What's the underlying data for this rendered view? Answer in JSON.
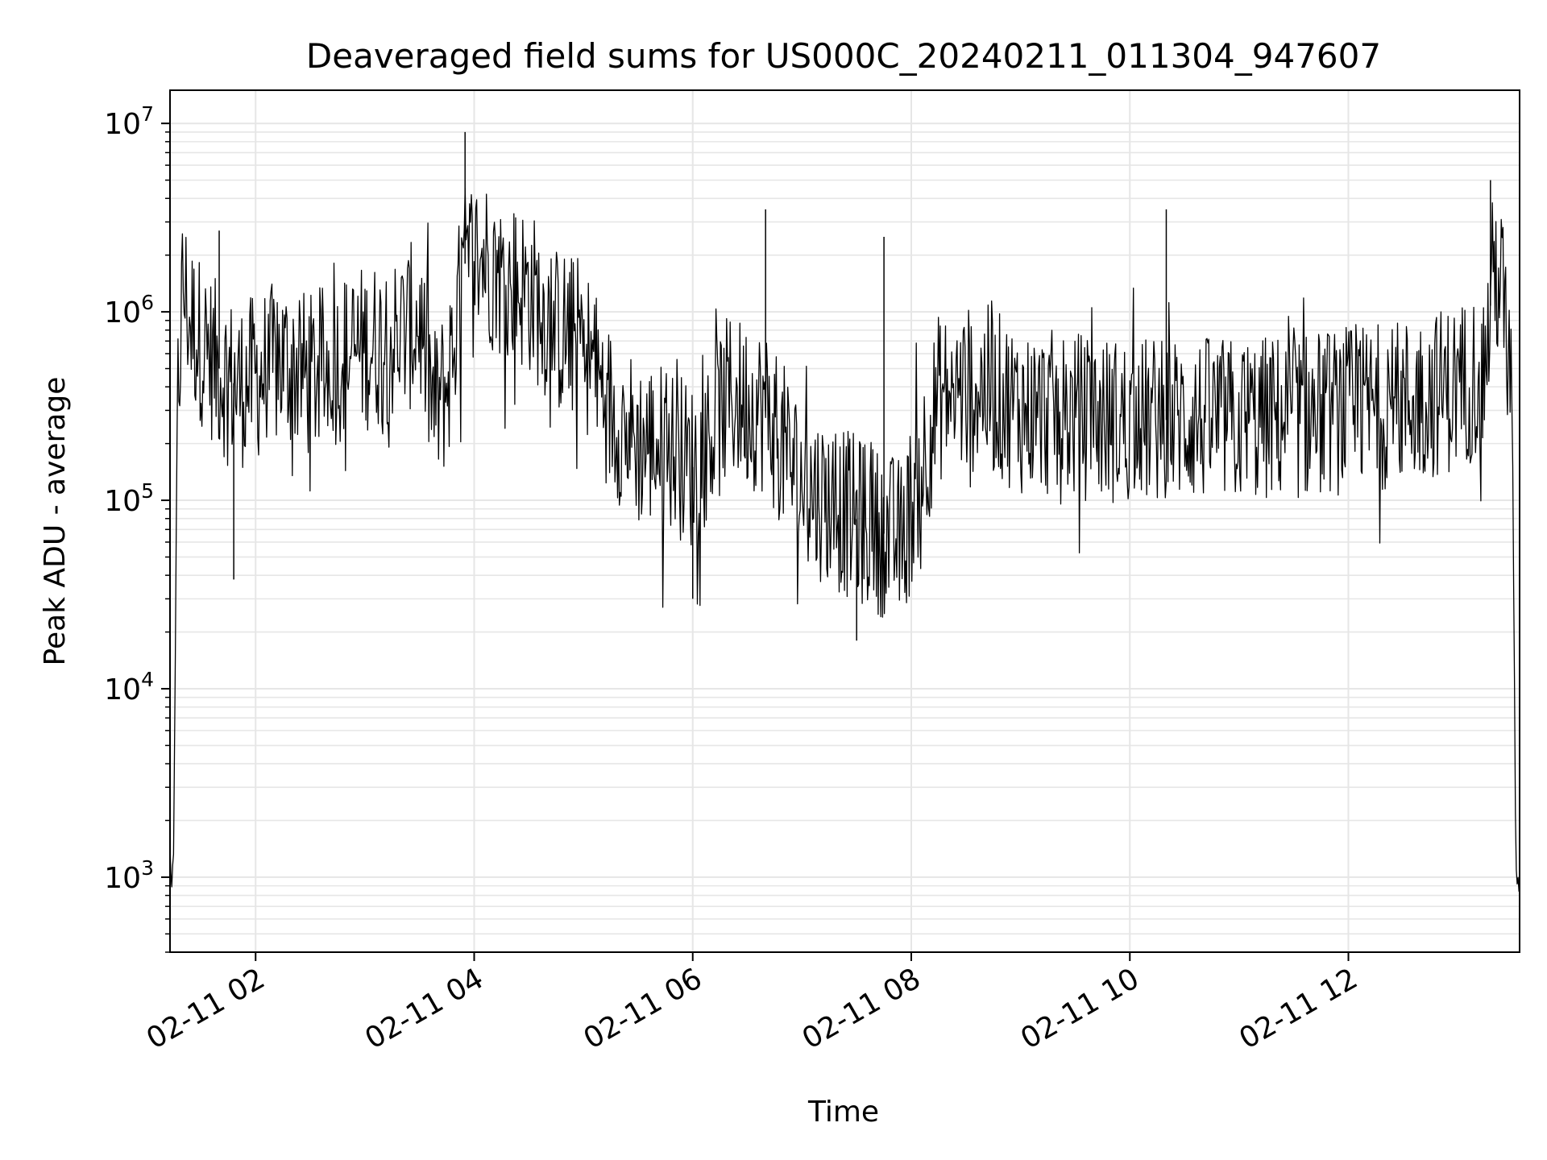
{
  "chart_data": {
    "type": "line",
    "title": "Deaveraged field sums for US000C_20240211_011304_947607",
    "xlabel": "Time",
    "ylabel": "Peak ADU - average",
    "yscale": "log",
    "ylim": [
      400,
      15000000
    ],
    "xlim": [
      "2024-02-11 01:13",
      "2024-02-11 13:34"
    ],
    "grid": true,
    "line_color": "#000000",
    "grid_color": "#e6e6e6",
    "x_ticks": [
      {
        "value": "2024-02-11 02:00",
        "label": "02-11 02"
      },
      {
        "value": "2024-02-11 04:00",
        "label": "02-11 04"
      },
      {
        "value": "2024-02-11 06:00",
        "label": "02-11 06"
      },
      {
        "value": "2024-02-11 08:00",
        "label": "02-11 08"
      },
      {
        "value": "2024-02-11 10:00",
        "label": "02-11 10"
      },
      {
        "value": "2024-02-11 12:00",
        "label": "02-11 12"
      }
    ],
    "y_ticks": [
      {
        "value": 1000,
        "base": "10",
        "exp": "3"
      },
      {
        "value": 10000,
        "base": "10",
        "exp": "4"
      },
      {
        "value": 100000,
        "base": "10",
        "exp": "5"
      },
      {
        "value": 1000000,
        "base": "10",
        "exp": "6"
      },
      {
        "value": 10000000,
        "base": "10",
        "exp": "7"
      }
    ],
    "series": [
      {
        "x": [
          "2024-02-11 01:13",
          "2024-02-11 01:14",
          "2024-02-11 01:15",
          "2024-02-11 01:17",
          "2024-02-11 01:20",
          "2024-02-11 01:24",
          "2024-02-11 01:30",
          "2024-02-11 01:40",
          "2024-02-11 01:50",
          "2024-02-11 02:00",
          "2024-02-11 02:15",
          "2024-02-11 02:30",
          "2024-02-11 02:45",
          "2024-02-11 03:00",
          "2024-02-11 03:15",
          "2024-02-11 03:30",
          "2024-02-11 03:38",
          "2024-02-11 03:45",
          "2024-02-11 03:55",
          "2024-02-11 04:05",
          "2024-02-11 04:15",
          "2024-02-11 04:30",
          "2024-02-11 04:45",
          "2024-02-11 05:00",
          "2024-02-11 05:15",
          "2024-02-11 05:30",
          "2024-02-11 05:45",
          "2024-02-11 06:00",
          "2024-02-11 06:20",
          "2024-02-11 06:40",
          "2024-02-11 07:00",
          "2024-02-11 07:20",
          "2024-02-11 07:40",
          "2024-02-11 07:55",
          "2024-02-11 08:15",
          "2024-02-11 08:40",
          "2024-02-11 09:00",
          "2024-02-11 09:30",
          "2024-02-11 10:00",
          "2024-02-11 10:30",
          "2024-02-11 11:00",
          "2024-02-11 11:30",
          "2024-02-11 12:00",
          "2024-02-11 12:30",
          "2024-02-11 13:00",
          "2024-02-11 13:15",
          "2024-02-11 13:20",
          "2024-02-11 13:25",
          "2024-02-11 13:30",
          "2024-02-11 13:32",
          "2024-02-11 13:34"
        ],
        "y": [
          1400,
          850,
          1300,
          300000,
          1400000,
          900000,
          700000,
          500000,
          400000,
          450000,
          550000,
          450000,
          550000,
          650000,
          700000,
          900000,
          300000,
          400000,
          1800000,
          2000000,
          1500000,
          1300000,
          800000,
          700000,
          300000,
          200000,
          200000,
          150000,
          350000,
          300000,
          120000,
          90000,
          70000,
          60000,
          350000,
          400000,
          300000,
          280000,
          260000,
          270000,
          260000,
          280000,
          300000,
          330000,
          400000,
          500000,
          1800000,
          1200000,
          300000,
          1000,
          850
        ],
        "spikes": [
          {
            "x": "2024-02-11 01:40",
            "y": 2700000
          },
          {
            "x": "2024-02-11 03:55",
            "y": 9000000
          },
          {
            "x": "2024-02-11 06:40",
            "y": 3500000
          },
          {
            "x": "2024-02-11 07:45",
            "y": 2500000
          },
          {
            "x": "2024-02-11 10:20",
            "y": 3500000
          },
          {
            "x": "2024-02-11 13:18",
            "y": 5000000
          },
          {
            "x": "2024-02-11 01:48",
            "y": 38000
          },
          {
            "x": "2024-02-11 07:30",
            "y": 18000
          },
          {
            "x": "2024-02-11 06:00",
            "y": 30000
          }
        ]
      }
    ]
  }
}
